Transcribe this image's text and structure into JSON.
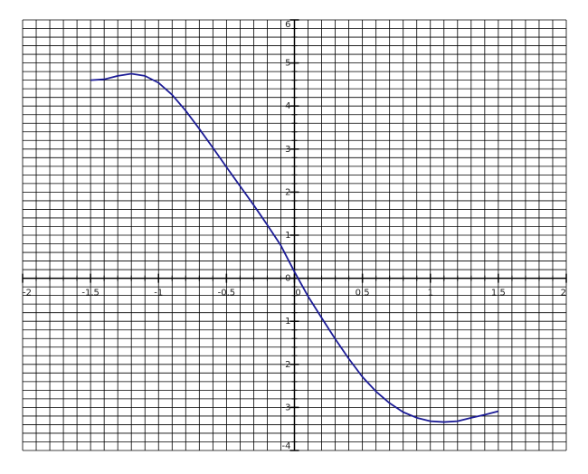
{
  "chart_data": {
    "type": "line",
    "x": [
      -1.5,
      -1.4,
      -1.3,
      -1.2,
      -1.1,
      -1.0,
      -0.9,
      -0.8,
      -0.7,
      -0.6,
      -0.5,
      -0.4,
      -0.3,
      -0.2,
      -0.1,
      0,
      0.1,
      0.2,
      0.3,
      0.4,
      0.5,
      0.6,
      0.7,
      0.8,
      0.9,
      1.0,
      1.1,
      1.2,
      1.3,
      1.4,
      1.5
    ],
    "series": [
      {
        "color": "#1c1c96",
        "values": [
          4.6,
          4.62,
          4.7,
          4.75,
          4.7,
          4.54,
          4.26,
          3.89,
          3.47,
          3.03,
          2.58,
          2.14,
          1.7,
          1.24,
          0.76,
          0.15,
          -0.42,
          -0.92,
          -1.41,
          -1.87,
          -2.29,
          -2.63,
          -2.9,
          -3.11,
          -3.24,
          -3.32,
          -3.34,
          -3.32,
          -3.24,
          -3.17,
          -3.09
        ]
      }
    ],
    "xlim": [
      -2,
      2
    ],
    "ylim": [
      -4,
      6
    ],
    "xticks": [
      -2,
      -1.5,
      -1,
      -0.5,
      0,
      0.5,
      1,
      1.5,
      2
    ],
    "yticks": [
      -4,
      -3,
      -2,
      -1,
      0,
      1,
      2,
      3,
      4,
      5,
      6
    ],
    "x_minor_step": 0.1,
    "y_minor_step": 0.2,
    "grid": true
  }
}
